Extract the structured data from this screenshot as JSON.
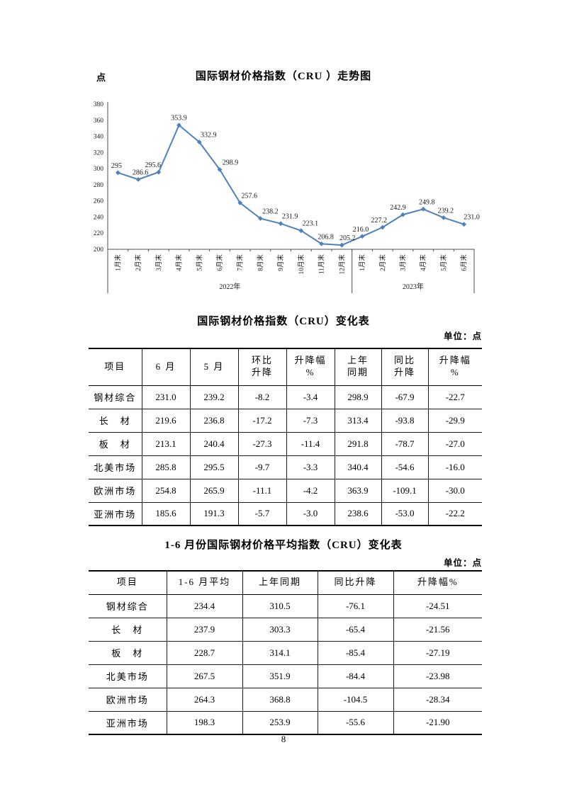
{
  "chart_data": {
    "type": "line",
    "title": "国际钢材价格指数（CRU ）走势图",
    "ylabel": "点",
    "ylim": [
      200,
      380
    ],
    "ytick_step": 20,
    "grid": false,
    "legend": "none",
    "line_color": "#4f81bd",
    "x_groups": [
      {
        "label": "2022年",
        "categories": [
          "1月末",
          "2月末",
          "3月末",
          "4月末",
          "5月末",
          "6月末",
          "7月末",
          "8月末",
          "9月末",
          "10月末",
          "11月末",
          "12月末"
        ]
      },
      {
        "label": "2023年",
        "categories": [
          "1月末",
          "2月末",
          "3月末",
          "4月末",
          "5月末",
          "6月末"
        ]
      }
    ],
    "values": [
      295,
      286.6,
      295.6,
      353.9,
      332.9,
      298.9,
      257.6,
      238.2,
      231.9,
      223.1,
      206.8,
      205.2,
      216.0,
      227.2,
      242.9,
      249.8,
      239.2,
      231.0
    ],
    "point_labels": [
      "295",
      "286.6",
      "295.6",
      "353.9",
      "332.9",
      "298.9",
      "257.6",
      "238.2",
      "231.9",
      "223.1",
      "206.8",
      "205.2",
      "216.0",
      "227.2",
      "242.9",
      "249.8",
      "239.2",
      "231.0"
    ],
    "label_dx": [
      -2,
      3,
      -8,
      0,
      13,
      15,
      13,
      14,
      13,
      13,
      6,
      8,
      -2,
      -5,
      -7,
      5,
      3,
      11
    ]
  },
  "table1": {
    "title": "国际钢材价格指数（CRU）变化表",
    "unit": "单位：点",
    "headers": [
      "项目",
      "6 月",
      "5 月",
      "环比\n升降",
      "升降幅\n%",
      "上年\n同期",
      "同比\n升降",
      "升降幅\n%"
    ],
    "rows": [
      [
        "钢材综合",
        "231.0",
        "239.2",
        "-8.2",
        "-3.4",
        "298.9",
        "-67.9",
        "-22.7"
      ],
      [
        "长　材",
        "219.6",
        "236.8",
        "-17.2",
        "-7.3",
        "313.4",
        "-93.8",
        "-29.9"
      ],
      [
        "板　材",
        "213.1",
        "240.4",
        "-27.3",
        "-11.4",
        "291.8",
        "-78.7",
        "-27.0"
      ],
      [
        "北美市场",
        "285.8",
        "295.5",
        "-9.7",
        "-3.3",
        "340.4",
        "-54.6",
        "-16.0"
      ],
      [
        "欧洲市场",
        "254.8",
        "265.9",
        "-11.1",
        "-4.2",
        "363.9",
        "-109.1",
        "-30.0"
      ],
      [
        "亚洲市场",
        "185.6",
        "191.3",
        "-5.7",
        "-3.0",
        "238.6",
        "-53.0",
        "-22.2"
      ]
    ]
  },
  "table2": {
    "title": "1-6 月份国际钢材价格平均指数（CRU）变化表",
    "unit": "单位：点",
    "headers": [
      "项目",
      "1-6 月平均",
      "上年同期",
      "同比升降",
      "升降幅%"
    ],
    "rows": [
      [
        "钢材综合",
        "234.4",
        "310.5",
        "-76.1",
        "-24.51"
      ],
      [
        "长　材",
        "237.9",
        "303.3",
        "-65.4",
        "-21.56"
      ],
      [
        "板　材",
        "228.7",
        "314.1",
        "-85.4",
        "-27.19"
      ],
      [
        "北美市场",
        "267.5",
        "351.9",
        "-84.4",
        "-23.98"
      ],
      [
        "欧洲市场",
        "264.3",
        "368.8",
        "-104.5",
        "-28.34"
      ],
      [
        "亚洲市场",
        "198.3",
        "253.9",
        "-55.6",
        "-21.90"
      ]
    ]
  },
  "page": {
    "number": "8"
  }
}
